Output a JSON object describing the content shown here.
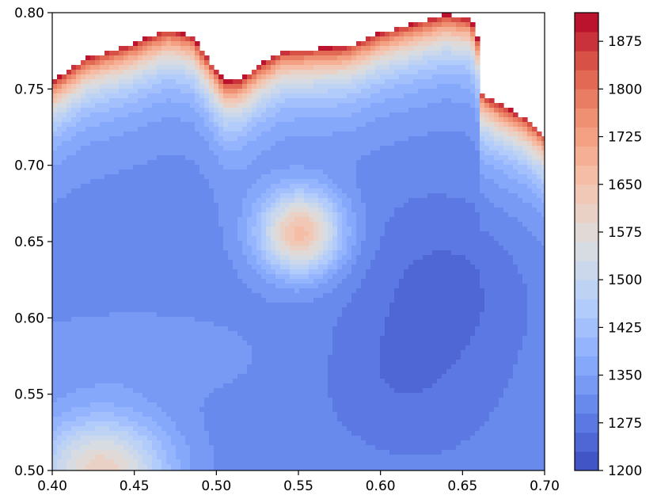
{
  "chart_data": {
    "type": "heatmap",
    "subtype": "filled-contour",
    "colormap": "coolwarm",
    "title": "",
    "xlabel": "",
    "ylabel": "",
    "xlim": [
      0.4,
      0.7
    ],
    "ylim": [
      0.5,
      0.8
    ],
    "x_ticks": [
      "0.40",
      "0.45",
      "0.50",
      "0.55",
      "0.60",
      "0.65",
      "0.70"
    ],
    "y_ticks": [
      "0.50",
      "0.55",
      "0.60",
      "0.65",
      "0.70",
      "0.75",
      "0.80"
    ],
    "colorbar": {
      "range": [
        1200,
        1920
      ],
      "ticks": [
        "1200",
        "1275",
        "1350",
        "1425",
        "1500",
        "1575",
        "1650",
        "1725",
        "1800",
        "1875"
      ],
      "levels": 24
    },
    "field": {
      "background_value": 1345,
      "hotspots": [
        {
          "x": 0.551,
          "y": 0.656,
          "value": 1700
        },
        {
          "x": 0.43,
          "y": 0.5,
          "value": 1650
        }
      ],
      "low_regions": [
        {
          "x": 0.6,
          "y": 0.56,
          "value": 1290
        },
        {
          "x": 0.65,
          "y": 0.62,
          "value": 1300
        }
      ],
      "upper_boundary": [
        {
          "x": 0.4,
          "y": 0.755
        },
        {
          "x": 0.42,
          "y": 0.77
        },
        {
          "x": 0.45,
          "y": 0.78
        },
        {
          "x": 0.47,
          "y": 0.789
        },
        {
          "x": 0.485,
          "y": 0.785
        },
        {
          "x": 0.495,
          "y": 0.77
        },
        {
          "x": 0.505,
          "y": 0.755
        },
        {
          "x": 0.515,
          "y": 0.756
        },
        {
          "x": 0.525,
          "y": 0.765
        },
        {
          "x": 0.54,
          "y": 0.775
        },
        {
          "x": 0.58,
          "y": 0.778
        },
        {
          "x": 0.6,
          "y": 0.787
        },
        {
          "x": 0.62,
          "y": 0.793
        },
        {
          "x": 0.64,
          "y": 0.799
        },
        {
          "x": 0.655,
          "y": 0.796
        },
        {
          "x": 0.66,
          "y": 0.78
        },
        {
          "x": 0.655,
          "y": 0.755
        },
        {
          "x": 0.665,
          "y": 0.745
        },
        {
          "x": 0.69,
          "y": 0.73
        },
        {
          "x": 0.7,
          "y": 0.72
        }
      ]
    }
  }
}
